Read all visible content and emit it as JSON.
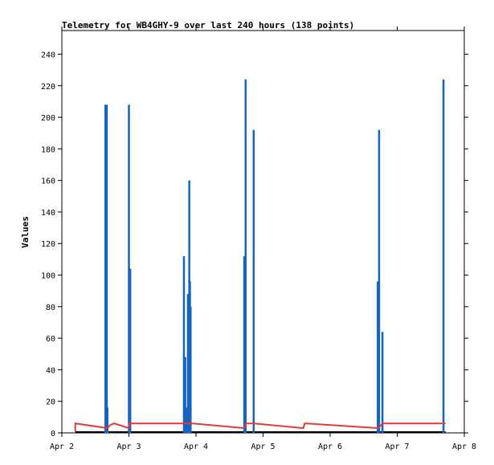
{
  "chart_data": {
    "type": "line",
    "title": "Telemetry for WB4GHY-9 over last 240 hours (138 points)",
    "xlabel": "",
    "ylabel": "Values",
    "xlim": [
      "Apr 2",
      "Apr 8"
    ],
    "ylim": [
      0,
      255
    ],
    "x_ticks": [
      "Apr 2",
      "Apr 3",
      "Apr 4",
      "Apr 5",
      "Apr 6",
      "Apr 7",
      "Apr 8"
    ],
    "y_ticks": [
      0,
      20,
      40,
      60,
      80,
      100,
      120,
      140,
      160,
      180,
      200,
      220,
      240
    ],
    "grid": false,
    "legend": "none",
    "series": [
      {
        "color": "#1565c0",
        "style": "impulse",
        "points": [
          {
            "x": 2.65,
            "y": 208
          },
          {
            "x": 2.67,
            "y": 208
          },
          {
            "x": 2.68,
            "y": 16
          },
          {
            "x": 3.0,
            "y": 208
          },
          {
            "x": 3.02,
            "y": 104
          },
          {
            "x": 3.82,
            "y": 112
          },
          {
            "x": 3.84,
            "y": 48
          },
          {
            "x": 3.86,
            "y": 16
          },
          {
            "x": 3.88,
            "y": 88
          },
          {
            "x": 3.9,
            "y": 160
          },
          {
            "x": 3.91,
            "y": 96
          },
          {
            "x": 3.92,
            "y": 80
          },
          {
            "x": 4.72,
            "y": 112
          },
          {
            "x": 4.74,
            "y": 224
          },
          {
            "x": 4.86,
            "y": 192
          },
          {
            "x": 6.71,
            "y": 96
          },
          {
            "x": 6.73,
            "y": 192
          },
          {
            "x": 6.78,
            "y": 64
          },
          {
            "x": 7.69,
            "y": 224
          }
        ]
      },
      {
        "color": "#e53935",
        "style": "line",
        "points": [
          {
            "x": 2.2,
            "y": 1
          },
          {
            "x": 2.2,
            "y": 6
          },
          {
            "x": 2.68,
            "y": 3
          },
          {
            "x": 2.72,
            "y": 5
          },
          {
            "x": 2.78,
            "y": 6
          },
          {
            "x": 3.0,
            "y": 3
          },
          {
            "x": 3.0,
            "y": 6
          },
          {
            "x": 3.95,
            "y": 6
          },
          {
            "x": 4.72,
            "y": 3
          },
          {
            "x": 4.75,
            "y": 6
          },
          {
            "x": 4.86,
            "y": 6
          },
          {
            "x": 5.6,
            "y": 3
          },
          {
            "x": 5.62,
            "y": 6
          },
          {
            "x": 6.72,
            "y": 3
          },
          {
            "x": 6.78,
            "y": 6
          },
          {
            "x": 7.72,
            "y": 6
          }
        ]
      }
    ]
  }
}
